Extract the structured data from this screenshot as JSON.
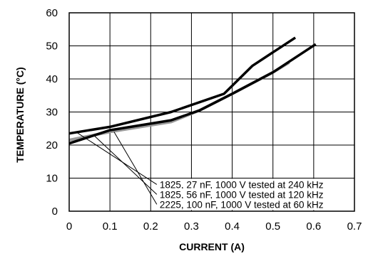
{
  "chart_data": {
    "type": "line",
    "xlabel": "CURRENT (A)",
    "ylabel": "TEMPERATURE (°C)",
    "xlim": [
      0,
      0.7
    ],
    "ylim": [
      0,
      60
    ],
    "xticks": [
      "0",
      "0.1",
      "0.2",
      "0.3",
      "0.4",
      "0.5",
      "0.6",
      "0.7"
    ],
    "yticks": [
      "0",
      "10",
      "20",
      "30",
      "40",
      "50",
      "60"
    ],
    "grid": true,
    "series": [
      {
        "name": "1825, 27 nF, 1000 V tested at 240 kHz",
        "color": "#000000",
        "x": [
          0,
          0.1,
          0.25,
          0.38,
          0.45,
          0.555
        ],
        "y": [
          23.5,
          25.5,
          30,
          35.5,
          44,
          52.5
        ]
      },
      {
        "name": "1825, 56 nF, 1000 V tested at 120 kHz",
        "color": "#000000",
        "x": [
          0,
          0.1,
          0.25,
          0.32,
          0.4,
          0.5,
          0.605
        ],
        "y": [
          20.5,
          24.5,
          27.5,
          30.5,
          35.5,
          42,
          50.5
        ]
      },
      {
        "name": "2225, 100 nF, 1000 V tested at 60 kHz",
        "color": "#999999",
        "x": [
          0,
          0.1,
          0.25,
          0.32,
          0.4,
          0.5,
          0.54
        ],
        "y": [
          21.5,
          24,
          27,
          30.5,
          35.5,
          42,
          45
        ]
      }
    ],
    "annotations": [
      {
        "text": "1825, 27 nF, 1000 V tested at 240 kHz",
        "series": 0,
        "point": [
          0.02,
          23.7
        ],
        "label_at": [
          0.215,
          7
        ]
      },
      {
        "text": "1825, 56 nF, 1000 V tested at 120 kHz",
        "series": 1,
        "point": [
          0.06,
          23.0
        ],
        "label_at": [
          0.215,
          4
        ]
      },
      {
        "text": "2225, 100 nF, 1000 V tested at 60 kHz",
        "series": 2,
        "point": [
          0.11,
          24.0
        ],
        "label_at": [
          0.215,
          1
        ]
      }
    ]
  }
}
